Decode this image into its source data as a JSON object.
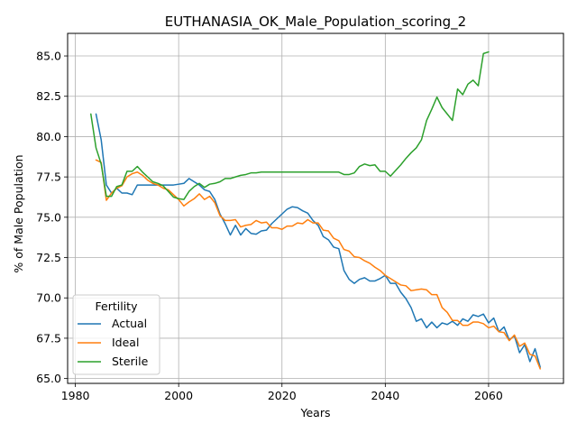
{
  "chart_data": {
    "type": "line",
    "title": "EUTHANASIA_OK_Male_Population_scoring_2",
    "xlabel": "Years",
    "ylabel": "% of Male Population",
    "xlim": [
      1978.5,
      2074.5
    ],
    "ylim": [
      64.7,
      86.4
    ],
    "xticks": [
      1980,
      2000,
      2020,
      2040,
      2060
    ],
    "yticks": [
      65.0,
      67.5,
      70.0,
      72.5,
      75.0,
      77.5,
      80.0,
      82.5,
      85.0
    ],
    "xtick_labels": [
      "1980",
      "2000",
      "2020",
      "2040",
      "2060"
    ],
    "ytick_labels": [
      "65.0",
      "67.5",
      "70.0",
      "72.5",
      "75.0",
      "77.5",
      "80.0",
      "82.5",
      "85.0"
    ],
    "grid": true,
    "legend": {
      "title": "Fertility",
      "placement": "lower-left"
    },
    "series": [
      {
        "name": "Actual",
        "color": "#1f77b4",
        "x": [
          1984,
          1985,
          1986,
          1987,
          1988,
          1989,
          1990,
          1991,
          1992,
          1993,
          1994,
          1995,
          1996,
          1997,
          1998,
          1999,
          2000,
          2001,
          2002,
          2003,
          2004,
          2005,
          2006,
          2007,
          2008,
          2009,
          2010,
          2011,
          2012,
          2013,
          2014,
          2015,
          2016,
          2017,
          2018,
          2019,
          2020,
          2021,
          2022,
          2023,
          2024,
          2025,
          2026,
          2027,
          2028,
          2029,
          2030,
          2031,
          2032,
          2033,
          2034,
          2035,
          2036,
          2037,
          2038,
          2039,
          2040,
          2041,
          2042,
          2043,
          2044,
          2045,
          2046,
          2047,
          2048,
          2049,
          2050,
          2051,
          2052,
          2053,
          2054,
          2055,
          2056,
          2057,
          2058,
          2059,
          2060,
          2061,
          2062,
          2063,
          2064,
          2065,
          2066,
          2067,
          2068,
          2069,
          2070
        ],
        "values": [
          81.4,
          79.8,
          77.0,
          76.5,
          76.8,
          76.5,
          76.5,
          76.4,
          77.0,
          77.0,
          77.0,
          77.0,
          77.0,
          77.0,
          77.0,
          77.0,
          77.05,
          77.1,
          77.4,
          77.2,
          77.0,
          76.7,
          76.6,
          76.1,
          75.2,
          74.6,
          73.9,
          74.5,
          73.9,
          74.3,
          74.0,
          73.95,
          74.15,
          74.2,
          74.6,
          74.9,
          75.2,
          75.5,
          75.65,
          75.6,
          75.4,
          75.25,
          74.8,
          74.5,
          73.8,
          73.6,
          73.15,
          73.05,
          71.7,
          71.15,
          70.9,
          71.15,
          71.25,
          71.05,
          71.05,
          71.2,
          71.4,
          70.9,
          70.9,
          70.35,
          69.95,
          69.4,
          68.55,
          68.7,
          68.15,
          68.5,
          68.15,
          68.45,
          68.35,
          68.55,
          68.3,
          68.7,
          68.55,
          68.95,
          68.85,
          69.0,
          68.45,
          68.75,
          67.9,
          68.2,
          67.4,
          67.65,
          66.6,
          67.1,
          66.05,
          66.85,
          65.7
        ]
      },
      {
        "name": "Ideal",
        "color": "#ff7f0e",
        "x": [
          1984,
          1985,
          1986,
          1987,
          1988,
          1989,
          1990,
          1991,
          1992,
          1993,
          1994,
          1995,
          1996,
          1997,
          1998,
          1999,
          2000,
          2001,
          2002,
          2003,
          2004,
          2005,
          2006,
          2007,
          2008,
          2009,
          2010,
          2011,
          2012,
          2013,
          2014,
          2015,
          2016,
          2017,
          2018,
          2019,
          2020,
          2021,
          2022,
          2023,
          2024,
          2025,
          2026,
          2027,
          2028,
          2029,
          2030,
          2031,
          2032,
          2033,
          2034,
          2035,
          2036,
          2037,
          2038,
          2039,
          2040,
          2041,
          2042,
          2043,
          2044,
          2045,
          2046,
          2047,
          2048,
          2049,
          2050,
          2051,
          2052,
          2053,
          2054,
          2055,
          2056,
          2057,
          2058,
          2059,
          2060,
          2061,
          2062,
          2063,
          2064,
          2065,
          2066,
          2067,
          2068,
          2069,
          2070
        ],
        "values": [
          78.55,
          78.4,
          76.05,
          76.5,
          76.8,
          76.95,
          77.5,
          77.7,
          77.8,
          77.6,
          77.3,
          77.1,
          77.0,
          76.8,
          76.7,
          76.4,
          76.1,
          75.7,
          75.95,
          76.15,
          76.45,
          76.1,
          76.3,
          75.9,
          75.1,
          74.8,
          74.8,
          74.85,
          74.4,
          74.5,
          74.55,
          74.8,
          74.65,
          74.7,
          74.35,
          74.35,
          74.25,
          74.45,
          74.45,
          74.65,
          74.6,
          74.85,
          74.65,
          74.65,
          74.2,
          74.15,
          73.7,
          73.55,
          73.0,
          72.9,
          72.55,
          72.5,
          72.3,
          72.15,
          71.9,
          71.7,
          71.4,
          71.2,
          71.0,
          70.8,
          70.75,
          70.45,
          70.5,
          70.55,
          70.5,
          70.2,
          70.2,
          69.4,
          69.1,
          68.6,
          68.6,
          68.3,
          68.3,
          68.5,
          68.5,
          68.4,
          68.15,
          68.25,
          67.9,
          67.85,
          67.35,
          67.7,
          67.0,
          67.2,
          66.5,
          66.4,
          65.6
        ]
      },
      {
        "name": "Sterile",
        "color": "#2ca02c",
        "x": [
          1983,
          1984,
          1985,
          1986,
          1987,
          1988,
          1989,
          1990,
          1991,
          1992,
          1993,
          1994,
          1995,
          1996,
          1997,
          1998,
          1999,
          2000,
          2001,
          2002,
          2003,
          2004,
          2005,
          2006,
          2007,
          2008,
          2009,
          2010,
          2011,
          2012,
          2013,
          2014,
          2015,
          2016,
          2017,
          2018,
          2019,
          2020,
          2021,
          2022,
          2023,
          2024,
          2025,
          2026,
          2027,
          2028,
          2029,
          2030,
          2031,
          2032,
          2033,
          2034,
          2035,
          2036,
          2037,
          2038,
          2039,
          2040,
          2041,
          2042,
          2043,
          2044,
          2045,
          2046,
          2047,
          2048,
          2049,
          2050,
          2051,
          2052,
          2053,
          2054,
          2055,
          2056,
          2057,
          2058,
          2059,
          2060
        ],
        "values": [
          81.4,
          79.3,
          78.3,
          76.3,
          76.3,
          76.9,
          77.0,
          77.85,
          77.85,
          78.15,
          77.8,
          77.5,
          77.2,
          77.1,
          76.95,
          76.6,
          76.25,
          76.15,
          76.1,
          76.6,
          76.9,
          77.1,
          76.85,
          77.05,
          77.1,
          77.2,
          77.4,
          77.4,
          77.5,
          77.6,
          77.65,
          77.75,
          77.75,
          77.8,
          77.8,
          77.8,
          77.8,
          77.8,
          77.8,
          77.8,
          77.8,
          77.8,
          77.8,
          77.8,
          77.8,
          77.8,
          77.8,
          77.8,
          77.8,
          77.65,
          77.65,
          77.75,
          78.15,
          78.3,
          78.2,
          78.25,
          77.85,
          77.85,
          77.55,
          77.9,
          78.25,
          78.65,
          79.0,
          79.3,
          79.8,
          81.0,
          81.7,
          82.45,
          81.8,
          81.4,
          81.0,
          82.95,
          82.6,
          83.25,
          83.5,
          83.15,
          85.15,
          85.25
        ]
      }
    ]
  }
}
